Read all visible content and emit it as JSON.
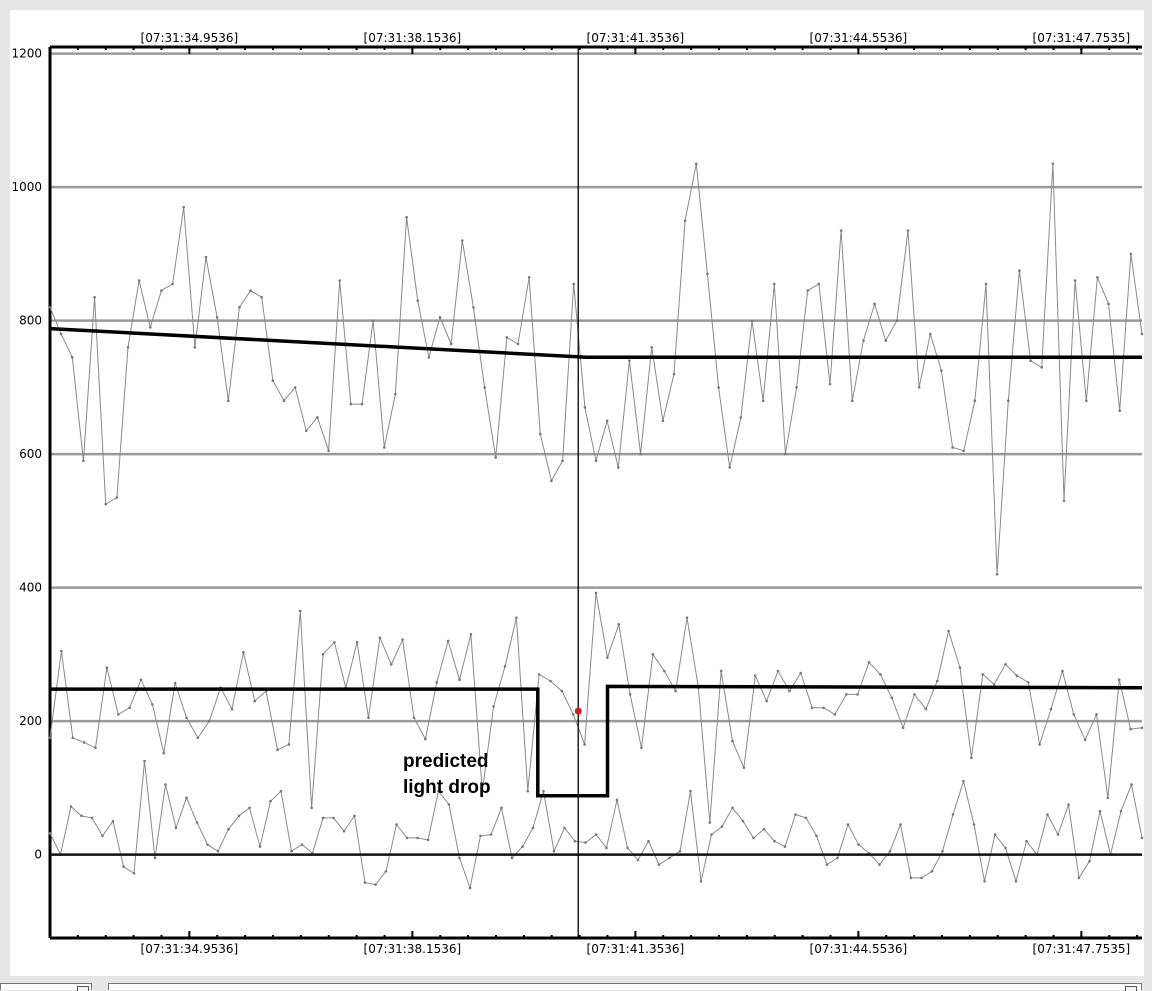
{
  "chart_data": {
    "type": "line",
    "title": "",
    "xlabel": "",
    "ylabel": "",
    "x_tick_labels": [
      "[07:31:34.9536]",
      "[07:31:38.1536]",
      "[07:31:41.3536]",
      "[07:31:44.5536]",
      "[07:31:47.7535]"
    ],
    "x_tick_positions": [
      2.0,
      5.2,
      8.4,
      11.6,
      14.8
    ],
    "xlim": [
      0.0,
      15.67
    ],
    "y_ticks": [
      0,
      200,
      400,
      600,
      800,
      1000,
      1200
    ],
    "ylim": [
      -125,
      1210
    ],
    "grid": true,
    "cursor_x": 7.58,
    "cursor_point": {
      "x": 7.58,
      "y": 215
    },
    "annotation": "predicted\nlight drop",
    "series": [
      {
        "style": "thin",
        "values": [
          820,
          780,
          745,
          590,
          835,
          525,
          535,
          760,
          860,
          790,
          845,
          855,
          970,
          760,
          895,
          805,
          680,
          820,
          845,
          835,
          710,
          680,
          700,
          635,
          655,
          605,
          860,
          675,
          675,
          800,
          610,
          690,
          955,
          830,
          745,
          805,
          765,
          920,
          820,
          700,
          595,
          775,
          765,
          865,
          630,
          560,
          590,
          855,
          670,
          590,
          650,
          580,
          740,
          600,
          760,
          650,
          720,
          950,
          1035,
          870,
          700,
          580,
          655,
          800,
          680,
          855,
          600,
          700,
          845,
          855,
          705,
          935,
          680,
          770,
          825,
          770,
          800,
          935,
          700,
          780,
          725,
          610,
          605,
          680,
          855,
          420,
          680,
          875,
          740,
          730,
          1035,
          530,
          860,
          680,
          865,
          825,
          665,
          900,
          780
        ]
      },
      {
        "style": "thin",
        "values": [
          175,
          305,
          175,
          168,
          160,
          280,
          210,
          220,
          262,
          225,
          152,
          257,
          205,
          175,
          200,
          250,
          218,
          303,
          230,
          245,
          157,
          165,
          365,
          70,
          300,
          318,
          250,
          318,
          205,
          325,
          285,
          322,
          205,
          173,
          258,
          320,
          262,
          330,
          95,
          222,
          282,
          355,
          95,
          270,
          260,
          245,
          210,
          165,
          392,
          295,
          345,
          240,
          160,
          300,
          275,
          245,
          355,
          250,
          48,
          275,
          170,
          130,
          268,
          230,
          275,
          245,
          272,
          220,
          220,
          210,
          240,
          240,
          288,
          270,
          235,
          190,
          240,
          218,
          260,
          335,
          280,
          145,
          270,
          255,
          285,
          268,
          258,
          165,
          218,
          275,
          210,
          172,
          210,
          85,
          262,
          188,
          190
        ]
      },
      {
        "style": "thin",
        "values": [
          32,
          0,
          72,
          58,
          55,
          28,
          50,
          -18,
          -28,
          140,
          -5,
          105,
          40,
          85,
          48,
          15,
          5,
          38,
          58,
          70,
          12,
          80,
          95,
          5,
          15,
          2,
          55,
          55,
          35,
          58,
          -42,
          -45,
          -25,
          45,
          25,
          25,
          22,
          95,
          75,
          -5,
          -50,
          28,
          30,
          70,
          -5,
          12,
          40,
          95,
          5,
          40,
          20,
          18,
          30,
          10,
          82,
          10,
          -8,
          20,
          -15,
          -5,
          5,
          95,
          -40,
          30,
          42,
          70,
          50,
          25,
          38,
          20,
          12,
          60,
          55,
          28,
          -15,
          -5,
          45,
          15,
          2,
          -15,
          5,
          45,
          -35,
          -35,
          -25,
          5,
          60,
          110,
          45,
          -40,
          30,
          10,
          -40,
          20,
          0,
          60,
          30,
          75,
          -35,
          -10,
          65,
          0,
          65,
          105,
          25
        ]
      },
      {
        "style": "thick",
        "x": [
          0.0,
          7.7,
          15.67
        ],
        "values": [
          788,
          745,
          745
        ]
      },
      {
        "style": "thick-step",
        "x": [
          0.0,
          7.0,
          7.0,
          8.0,
          8.0,
          15.67
        ],
        "values": [
          248,
          248,
          88,
          88,
          252,
          250
        ]
      },
      {
        "style": "baseline",
        "x": [
          0.0,
          15.67
        ],
        "values": [
          0,
          0
        ]
      }
    ]
  },
  "scrollbar": {
    "left_thumb": "scroll-thumb",
    "right_thumb": "scroll-thumb"
  }
}
